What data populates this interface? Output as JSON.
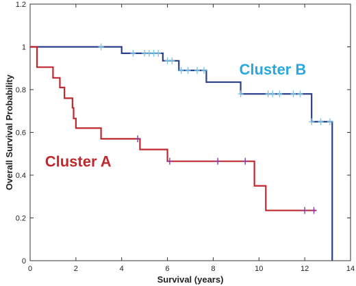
{
  "chart_data": {
    "type": "line",
    "xlabel": "Survival (years)",
    "ylabel": "Overall Survival Probability",
    "xlim": [
      0,
      14
    ],
    "ylim": [
      0,
      1.2
    ],
    "xticks": [
      0,
      2,
      4,
      6,
      8,
      10,
      12,
      14
    ],
    "yticks": [
      0,
      0.2,
      0.4,
      0.6,
      0.8,
      1,
      1.2
    ],
    "yticklabels": [
      "0",
      "0.2",
      "0.4",
      "0.6",
      "0.8",
      "1",
      "1.2"
    ],
    "grid": false,
    "series": [
      {
        "name": "Cluster B",
        "color": "#2b3f8c",
        "censor_color": "#7ec8e3",
        "label_color": "#29a8e0",
        "steps": [
          [
            0,
            1.0
          ],
          [
            4.0,
            0.97
          ],
          [
            5.8,
            0.935
          ],
          [
            6.5,
            0.89
          ],
          [
            7.7,
            0.835
          ],
          [
            9.2,
            0.78
          ],
          [
            12.3,
            0.65
          ],
          [
            13.2,
            0.0
          ]
        ],
        "end_x": 13.2,
        "censored": [
          [
            3.1,
            1.0
          ],
          [
            4.5,
            0.97
          ],
          [
            5.0,
            0.97
          ],
          [
            5.2,
            0.97
          ],
          [
            5.4,
            0.97
          ],
          [
            5.6,
            0.97
          ],
          [
            6.0,
            0.935
          ],
          [
            6.2,
            0.935
          ],
          [
            6.6,
            0.89
          ],
          [
            6.9,
            0.89
          ],
          [
            7.3,
            0.89
          ],
          [
            7.6,
            0.89
          ],
          [
            9.2,
            0.78
          ],
          [
            10.4,
            0.78
          ],
          [
            10.6,
            0.78
          ],
          [
            10.9,
            0.78
          ],
          [
            11.5,
            0.78
          ],
          [
            11.8,
            0.78
          ],
          [
            12.3,
            0.65
          ],
          [
            12.7,
            0.65
          ],
          [
            13.1,
            0.65
          ]
        ]
      },
      {
        "name": "Cluster A",
        "color": "#c0282d",
        "censor_color": "#8a3a9e",
        "label_color": "#c0282d",
        "steps": [
          [
            0,
            1.0
          ],
          [
            0.3,
            0.905
          ],
          [
            1.0,
            0.855
          ],
          [
            1.3,
            0.81
          ],
          [
            1.5,
            0.76
          ],
          [
            1.85,
            0.715
          ],
          [
            1.9,
            0.665
          ],
          [
            2.0,
            0.62
          ],
          [
            3.1,
            0.57
          ],
          [
            4.8,
            0.52
          ],
          [
            6.0,
            0.465
          ],
          [
            9.8,
            0.35
          ],
          [
            10.3,
            0.235
          ]
        ],
        "end_x": 12.5,
        "censored": [
          [
            4.7,
            0.57
          ],
          [
            6.1,
            0.465
          ],
          [
            8.2,
            0.465
          ],
          [
            9.4,
            0.465
          ],
          [
            12.0,
            0.235
          ],
          [
            12.4,
            0.235
          ]
        ]
      }
    ],
    "annotations": [
      {
        "text": "Cluster B",
        "x": 10.6,
        "y": 0.87,
        "color": "#29a8e0"
      },
      {
        "text": "Cluster A",
        "x": 2.1,
        "y": 0.44,
        "color": "#c0282d"
      }
    ]
  }
}
